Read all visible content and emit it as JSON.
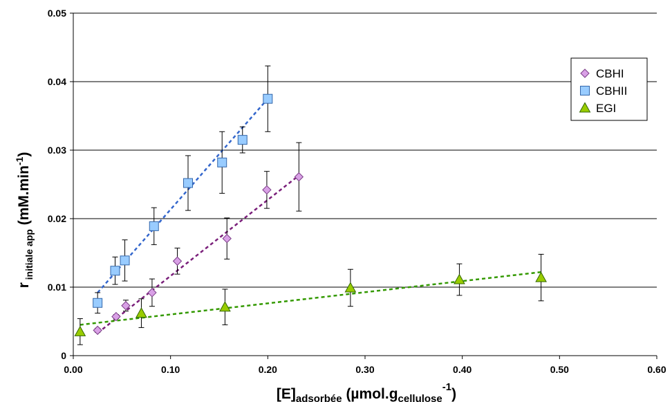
{
  "chart_data": {
    "type": "scatter",
    "xlabel": {
      "main": "[E]",
      "sub1": "adsorbée",
      "mid": " (µmol.g",
      "sub2": "cellulose",
      "sup": "-1",
      "end": ")"
    },
    "ylabel": {
      "main": "r",
      "sub": " initiale app",
      "mid": " (mM.min",
      "sup": "-1",
      "end": ")"
    },
    "xlim": [
      0,
      0.6
    ],
    "ylim": [
      0,
      0.05
    ],
    "x_ticks": [
      0,
      0.1,
      0.2,
      0.3,
      0.4,
      0.5,
      0.6
    ],
    "x_tick_labels": [
      "0.00",
      "0.10",
      "0.20",
      "0.30",
      "0.40",
      "0.50",
      "0.60"
    ],
    "y_ticks": [
      0,
      0.01,
      0.02,
      0.03,
      0.04,
      0.05
    ],
    "y_tick_labels": [
      "0",
      "0.01",
      "0.02",
      "0.03",
      "0.04",
      "0.05"
    ],
    "grid": "horizontal",
    "legend_position": "top-right",
    "series": [
      {
        "name": "CBHI",
        "marker": "diamond",
        "color": "#d9a0e6",
        "trend_color": "#7a1f7a",
        "points": [
          {
            "x": 0.025,
            "y": 0.0037,
            "err": 0.0003
          },
          {
            "x": 0.044,
            "y": 0.0057,
            "err": 0.0003
          },
          {
            "x": 0.054,
            "y": 0.0073,
            "err": 0.0008
          },
          {
            "x": 0.081,
            "y": 0.0092,
            "err": 0.002
          },
          {
            "x": 0.107,
            "y": 0.0138,
            "err": 0.0019
          },
          {
            "x": 0.158,
            "y": 0.0171,
            "err": 0.003
          },
          {
            "x": 0.199,
            "y": 0.0242,
            "err": 0.0027
          },
          {
            "x": 0.232,
            "y": 0.0261,
            "err": 0.005
          }
        ],
        "trend": {
          "x": [
            0.025,
            0.232
          ],
          "y": [
            0.0033,
            0.0263
          ]
        }
      },
      {
        "name": "CBHII",
        "marker": "square",
        "color": "#99ccff",
        "trend_color": "#3366cc",
        "points": [
          {
            "x": 0.025,
            "y": 0.0077,
            "err": 0.0015
          },
          {
            "x": 0.043,
            "y": 0.0124,
            "err": 0.002
          },
          {
            "x": 0.053,
            "y": 0.0139,
            "err": 0.003
          },
          {
            "x": 0.083,
            "y": 0.0189,
            "err": 0.0027
          },
          {
            "x": 0.118,
            "y": 0.0252,
            "err": 0.004
          },
          {
            "x": 0.153,
            "y": 0.0282,
            "err": 0.0045
          },
          {
            "x": 0.174,
            "y": 0.0315,
            "err": 0.0019
          },
          {
            "x": 0.2,
            "y": 0.0375,
            "err": 0.0048
          }
        ],
        "trend": {
          "x": [
            0.025,
            0.2
          ],
          "y": [
            0.0092,
            0.0375
          ]
        }
      },
      {
        "name": "EGI",
        "marker": "triangle",
        "color": "#99cc00",
        "trend_color": "#339900",
        "points": [
          {
            "x": 0.007,
            "y": 0.0035,
            "err": 0.0019
          },
          {
            "x": 0.07,
            "y": 0.0062,
            "err": 0.0021
          },
          {
            "x": 0.156,
            "y": 0.0071,
            "err": 0.0026
          },
          {
            "x": 0.285,
            "y": 0.0099,
            "err": 0.0027
          },
          {
            "x": 0.397,
            "y": 0.0111,
            "err": 0.0023
          },
          {
            "x": 0.481,
            "y": 0.0114,
            "err": 0.0034
          }
        ],
        "trend": {
          "x": [
            0.007,
            0.481
          ],
          "y": [
            0.0045,
            0.0122
          ]
        }
      }
    ]
  }
}
